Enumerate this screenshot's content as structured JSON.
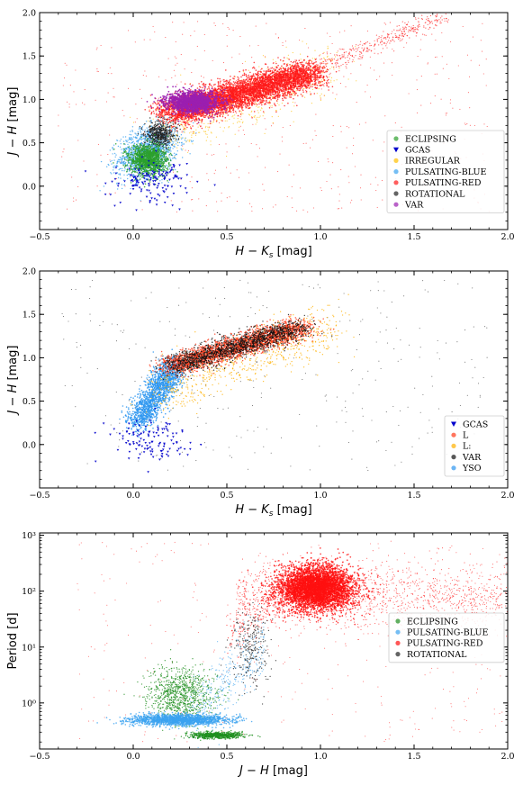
{
  "chart_data": [
    {
      "type": "scatter",
      "xlabel": "H − Ks [mag]",
      "ylabel": "J − H [mag]",
      "xlim": [
        -0.5,
        2.0
      ],
      "ylim": [
        -0.5,
        2.0
      ],
      "xticks": [
        "−0.5",
        "0.0",
        "0.5",
        "1.0",
        "1.5",
        "2.0"
      ],
      "yticks": [
        "0.0",
        "0.5",
        "1.0",
        "1.5",
        "2.0"
      ],
      "legend_position": "lower-right",
      "series": [
        {
          "name": "ECLIPSING",
          "color": "#2ca02c",
          "marker": "circle"
        },
        {
          "name": "GCAS",
          "color": "#0000cc",
          "marker": "triangle-down"
        },
        {
          "name": "IRREGULAR",
          "color": "#ffbf00",
          "marker": "circle"
        },
        {
          "name": "PULSATING-BLUE",
          "color": "#3ba3f0",
          "marker": "circle"
        },
        {
          "name": "PULSATING-RED",
          "color": "#ff1a1a",
          "marker": "circle"
        },
        {
          "name": "ROTATIONAL",
          "color": "#222222",
          "marker": "circle"
        },
        {
          "name": "VAR",
          "color": "#9b1fb0",
          "marker": "circle"
        }
      ]
    },
    {
      "type": "scatter",
      "xlabel": "H − Ks [mag]",
      "ylabel": "J − H [mag]",
      "xlim": [
        -0.5,
        2.0
      ],
      "ylim": [
        -0.5,
        2.0
      ],
      "xticks": [
        "−0.5",
        "0.0",
        "0.5",
        "1.0",
        "1.5",
        "2.0"
      ],
      "yticks": [
        "0.0",
        "0.5",
        "1.0",
        "1.5",
        "2.0"
      ],
      "legend_position": "lower-right",
      "series": [
        {
          "name": "GCAS",
          "color": "#0000cc",
          "marker": "triangle-down"
        },
        {
          "name": "L",
          "color": "#ff3b1a",
          "marker": "circle"
        },
        {
          "name": "L:",
          "color": "#ffb000",
          "marker": "circle"
        },
        {
          "name": "VAR",
          "color": "#111111",
          "marker": "circle"
        },
        {
          "name": "YSO",
          "color": "#2e96f0",
          "marker": "circle"
        }
      ]
    },
    {
      "type": "scatter",
      "xlabel": "J − H [mag]",
      "ylabel": "Period [d]",
      "xlim": [
        -0.5,
        2.0
      ],
      "ylim": [
        0.15,
        1100
      ],
      "yscale": "log",
      "xticks": [
        "−0.5",
        "0.0",
        "0.5",
        "1.0",
        "1.5",
        "2.0"
      ],
      "yticks": [
        "10⁰",
        "10¹",
        "10²",
        "10³"
      ],
      "legend_position": "center-right",
      "series": [
        {
          "name": "ECLIPSING",
          "color": "#1f8f1f",
          "marker": "circle"
        },
        {
          "name": "PULSATING-BLUE",
          "color": "#3ba3f0",
          "marker": "circle"
        },
        {
          "name": "PULSATING-RED",
          "color": "#ff1010",
          "marker": "circle"
        },
        {
          "name": "ROTATIONAL",
          "color": "#222222",
          "marker": "circle"
        }
      ]
    }
  ]
}
